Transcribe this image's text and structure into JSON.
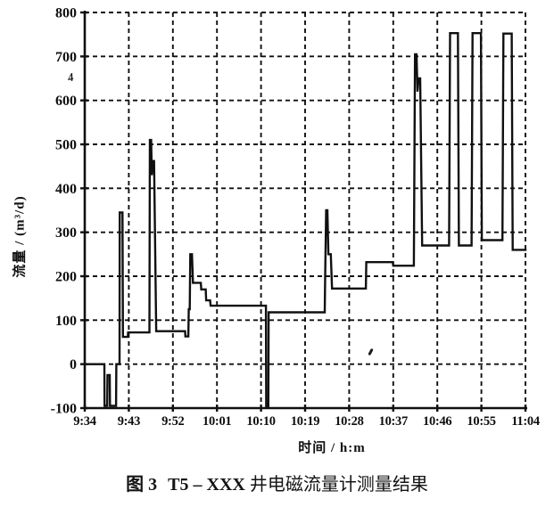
{
  "figure": {
    "caption": {
      "fig_no": "图 3",
      "well_code": "T5 – XXX",
      "suffix": "井电磁流量计测量结果"
    },
    "y_axis_title": "流量 / (m³/d)",
    "x_axis_title": "时间 / h:m",
    "axis_break_glyph": "4",
    "ink_color": "#101010",
    "background_color": "#ffffff"
  },
  "chart_data": {
    "type": "line",
    "title": "图 3 T5 – XXX 井电磁流量计测量结果",
    "xlabel": "时间 / h:m",
    "ylabel": "流量 / (m³/d)",
    "xlim_minutes": [
      0,
      90
    ],
    "x_start_time": "9:34",
    "x_tick_interval_minutes": 9,
    "x_tick_labels": [
      "9:34",
      "9:43",
      "9:52",
      "10:01",
      "10:10",
      "10:19",
      "10:28",
      "10:37",
      "10:46",
      "10:55",
      "11:04"
    ],
    "ylim": [
      -100,
      800
    ],
    "y_ticks": [
      800,
      700,
      600,
      500,
      400,
      300,
      200,
      100,
      0,
      -100
    ],
    "grid": "dashed",
    "legend": "none",
    "series": [
      {
        "name": "流量",
        "x_unit": "minutes after 9:34",
        "y_unit": "m3/d",
        "points": [
          [
            0,
            0
          ],
          [
            4.0,
            0
          ],
          [
            4.05,
            -95
          ],
          [
            4.6,
            -95
          ],
          [
            4.65,
            -25
          ],
          [
            5.1,
            -25
          ],
          [
            5.15,
            -95
          ],
          [
            6.4,
            -95
          ],
          [
            6.45,
            0
          ],
          [
            7.1,
            0
          ],
          [
            7.15,
            345
          ],
          [
            7.7,
            345
          ],
          [
            7.8,
            62
          ],
          [
            8.8,
            62
          ],
          [
            8.85,
            72
          ],
          [
            13.2,
            72
          ],
          [
            13.3,
            510
          ],
          [
            13.55,
            510
          ],
          [
            13.7,
            430
          ],
          [
            13.9,
            462
          ],
          [
            14.15,
            462
          ],
          [
            14.6,
            75
          ],
          [
            20.5,
            75
          ],
          [
            20.55,
            63
          ],
          [
            21.15,
            63
          ],
          [
            21.25,
            125
          ],
          [
            21.45,
            125
          ],
          [
            21.55,
            250
          ],
          [
            21.9,
            250
          ],
          [
            22.1,
            185
          ],
          [
            23.7,
            185
          ],
          [
            23.8,
            170
          ],
          [
            24.7,
            170
          ],
          [
            24.8,
            145
          ],
          [
            25.6,
            145
          ],
          [
            25.7,
            133
          ],
          [
            37.0,
            133
          ],
          [
            37.05,
            -98
          ],
          [
            37.5,
            -98
          ],
          [
            37.55,
            118
          ],
          [
            49.0,
            118
          ],
          [
            49.1,
            200
          ],
          [
            49.3,
            350
          ],
          [
            49.55,
            350
          ],
          [
            49.75,
            250
          ],
          [
            50.25,
            250
          ],
          [
            50.5,
            172
          ],
          [
            57.4,
            172
          ],
          [
            57.5,
            232
          ],
          [
            62.9,
            232
          ],
          [
            63.0,
            224
          ],
          [
            67.2,
            224
          ],
          [
            67.45,
            705
          ],
          [
            67.75,
            705
          ],
          [
            67.95,
            620
          ],
          [
            68.15,
            650
          ],
          [
            68.5,
            650
          ],
          [
            68.9,
            270
          ],
          [
            74.4,
            270
          ],
          [
            74.6,
            753
          ],
          [
            76.2,
            753
          ],
          [
            76.4,
            270
          ],
          [
            79.0,
            270
          ],
          [
            79.2,
            753
          ],
          [
            80.9,
            753
          ],
          [
            81.1,
            282
          ],
          [
            85.3,
            282
          ],
          [
            85.5,
            752
          ],
          [
            87.2,
            752
          ],
          [
            87.4,
            260
          ],
          [
            90,
            260
          ]
        ]
      }
    ]
  }
}
